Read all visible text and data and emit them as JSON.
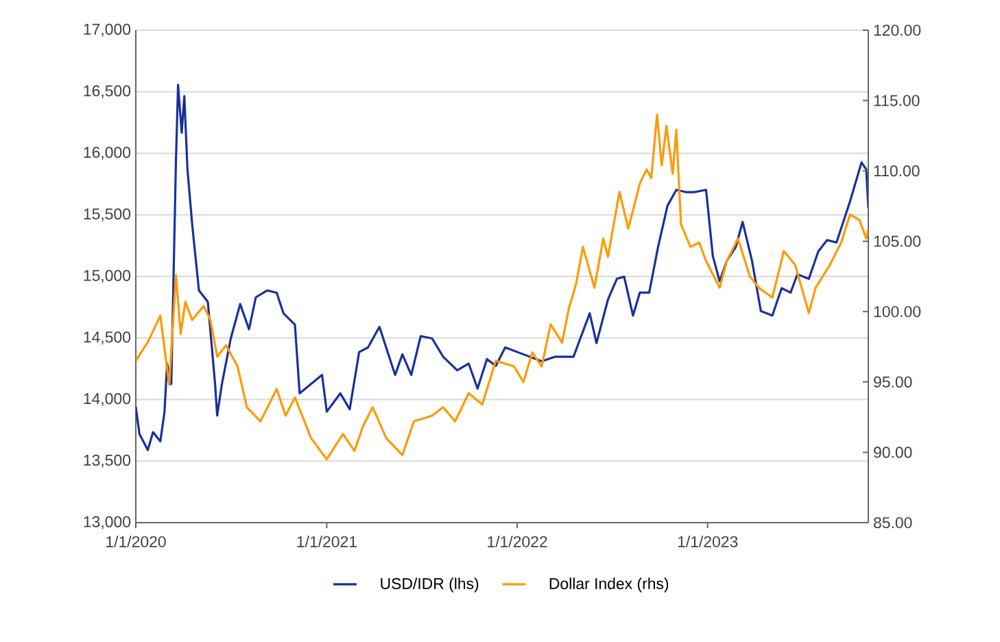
{
  "chart_data": {
    "type": "line",
    "xlim": [
      "2020-01-01",
      "2023-11-05"
    ],
    "xticks": [
      {
        "value": "2020-01-01",
        "label": "1/1/2020"
      },
      {
        "value": "2021-01-01",
        "label": "1/1/2021"
      },
      {
        "value": "2022-01-01",
        "label": "1/1/2022"
      },
      {
        "value": "2023-01-01",
        "label": "1/1/2023"
      }
    ],
    "ylim": [
      13000,
      17000
    ],
    "yticks": [
      {
        "value": 13000,
        "label": "13,000"
      },
      {
        "value": 13500,
        "label": "13,500"
      },
      {
        "value": 14000,
        "label": "14,000"
      },
      {
        "value": 14500,
        "label": "14,500"
      },
      {
        "value": 15000,
        "label": "15,000"
      },
      {
        "value": 15500,
        "label": "15,500"
      },
      {
        "value": 16000,
        "label": "16,000"
      },
      {
        "value": 16500,
        "label": "16,500"
      },
      {
        "value": 17000,
        "label": "17,000"
      }
    ],
    "y2lim": [
      85,
      120
    ],
    "y2ticks": [
      {
        "value": 85,
        "label": "85.00"
      },
      {
        "value": 90,
        "label": "90.00"
      },
      {
        "value": 95,
        "label": "95.00"
      },
      {
        "value": 100,
        "label": "100.00"
      },
      {
        "value": 105,
        "label": "105.00"
      },
      {
        "value": 110,
        "label": "110.00"
      },
      {
        "value": 115,
        "label": "115.00"
      },
      {
        "value": 120,
        "label": "120.00"
      }
    ],
    "grid": "y",
    "legend": "bottom",
    "marker": "none",
    "line_style": "solid",
    "series": [
      {
        "name": "USD/IDR (lhs)",
        "color": "#1a2f9e",
        "x": [
          "2020-01-01",
          "2020-01-08",
          "2020-01-24",
          "2020-02-03",
          "2020-02-17",
          "2020-02-25",
          "2020-03-01",
          "2020-03-09",
          "2020-03-18",
          "2020-03-22",
          "2020-03-29",
          "2020-04-03",
          "2020-04-09",
          "2020-04-18",
          "2020-05-01",
          "2020-05-18",
          "2020-06-01",
          "2020-06-05",
          "2020-06-14",
          "2020-07-01",
          "2020-07-19",
          "2020-08-05",
          "2020-08-18",
          "2020-09-09",
          "2020-09-27",
          "2020-10-10",
          "2020-11-01",
          "2020-11-10",
          "2020-12-23",
          "2021-01-01",
          "2021-01-27",
          "2021-02-14",
          "2021-03-04",
          "2021-03-21",
          "2021-04-12",
          "2021-05-12",
          "2021-05-26",
          "2021-06-12",
          "2021-06-30",
          "2021-07-22",
          "2021-08-12",
          "2021-09-08",
          "2021-09-30",
          "2021-10-17",
          "2021-11-04",
          "2021-11-21",
          "2021-12-09",
          "2022-01-13",
          "2022-02-17",
          "2022-03-15",
          "2022-04-19",
          "2022-05-02",
          "2022-05-20",
          "2022-06-02",
          "2022-06-24",
          "2022-07-11",
          "2022-07-25",
          "2022-08-11",
          "2022-08-24",
          "2022-09-11",
          "2022-09-28",
          "2022-10-16",
          "2022-11-02",
          "2022-11-20",
          "2022-12-07",
          "2022-12-29",
          "2023-01-11",
          "2023-01-24",
          "2023-02-07",
          "2023-02-24",
          "2023-03-09",
          "2023-03-27",
          "2023-04-13",
          "2023-05-05",
          "2023-05-23",
          "2023-06-09",
          "2023-06-22",
          "2023-07-14",
          "2023-08-01",
          "2023-08-18",
          "2023-09-05",
          "2023-10-01",
          "2023-10-23",
          "2023-11-01",
          "2023-11-05"
        ],
        "values": [
          13940,
          13720,
          13590,
          13735,
          13660,
          13900,
          14290,
          14125,
          15945,
          16557,
          16167,
          16465,
          15870,
          15425,
          14886,
          14794,
          14125,
          13870,
          14125,
          14496,
          14775,
          14571,
          14830,
          14886,
          14868,
          14700,
          14608,
          14050,
          14200,
          13902,
          14050,
          13921,
          14385,
          14423,
          14590,
          14200,
          14367,
          14200,
          14515,
          14496,
          14348,
          14237,
          14292,
          14089,
          14329,
          14273,
          14423,
          14367,
          14311,
          14348,
          14348,
          14496,
          14700,
          14459,
          14812,
          14980,
          14998,
          14682,
          14868,
          14868,
          15239,
          15573,
          15703,
          15685,
          15685,
          15703,
          15165,
          14961,
          15128,
          15239,
          15443,
          15128,
          14719,
          14682,
          14905,
          14868,
          15017,
          14980,
          15202,
          15295,
          15276,
          15610,
          15926,
          15870,
          15555
        ]
      },
      {
        "name": "Dollar Index (rhs)",
        "color": "#ff9900",
        "axis": "y2",
        "x": [
          "2020-01-01",
          "2020-01-25",
          "2020-02-17",
          "2020-03-05",
          "2020-03-18",
          "2020-03-27",
          "2020-04-05",
          "2020-04-18",
          "2020-05-10",
          "2020-05-23",
          "2020-06-05",
          "2020-06-22",
          "2020-07-14",
          "2020-08-01",
          "2020-08-27",
          "2020-09-27",
          "2020-10-14",
          "2020-11-01",
          "2020-12-02",
          "2021-01-01",
          "2021-02-01",
          "2021-02-23",
          "2021-03-12",
          "2021-03-30",
          "2021-04-25",
          "2021-05-26",
          "2021-06-17",
          "2021-07-22",
          "2021-08-12",
          "2021-09-04",
          "2021-09-30",
          "2021-10-26",
          "2021-11-21",
          "2021-12-26",
          "2022-01-13",
          "2022-01-30",
          "2022-02-17",
          "2022-03-06",
          "2022-03-28",
          "2022-04-10",
          "2022-04-24",
          "2022-05-07",
          "2022-05-29",
          "2022-06-15",
          "2022-06-24",
          "2022-07-16",
          "2022-08-02",
          "2022-08-24",
          "2022-09-06",
          "2022-09-15",
          "2022-09-26",
          "2022-10-05",
          "2022-10-14",
          "2022-10-26",
          "2022-11-02",
          "2022-11-11",
          "2022-11-29",
          "2022-12-16",
          "2022-12-29",
          "2023-01-24",
          "2023-02-07",
          "2023-02-28",
          "2023-03-23",
          "2023-04-09",
          "2023-05-05",
          "2023-05-27",
          "2023-06-18",
          "2023-07-14",
          "2023-07-27",
          "2023-08-23",
          "2023-09-14",
          "2023-10-01",
          "2023-10-19",
          "2023-11-01",
          "2023-11-05"
        ],
        "values": [
          96.5,
          97.9,
          99.7,
          94.8,
          102.6,
          98.4,
          100.7,
          99.4,
          100.4,
          99.4,
          96.8,
          97.6,
          96.1,
          93.2,
          92.2,
          94.5,
          92.6,
          93.9,
          91.0,
          89.5,
          91.3,
          90.1,
          91.9,
          93.2,
          91.0,
          89.8,
          92.2,
          92.6,
          93.2,
          92.2,
          94.2,
          93.4,
          96.5,
          96.1,
          95.0,
          97.1,
          96.1,
          99.1,
          97.8,
          100.2,
          102.0,
          104.6,
          101.7,
          105.2,
          103.9,
          108.5,
          105.9,
          109.1,
          110.1,
          109.5,
          114.0,
          110.4,
          113.2,
          109.8,
          112.9,
          106.2,
          104.6,
          104.9,
          103.6,
          101.7,
          103.6,
          105.2,
          102.5,
          101.7,
          101.0,
          104.3,
          103.3,
          99.9,
          101.7,
          103.3,
          104.9,
          106.9,
          106.5,
          105.2,
          105.9
        ]
      }
    ]
  }
}
